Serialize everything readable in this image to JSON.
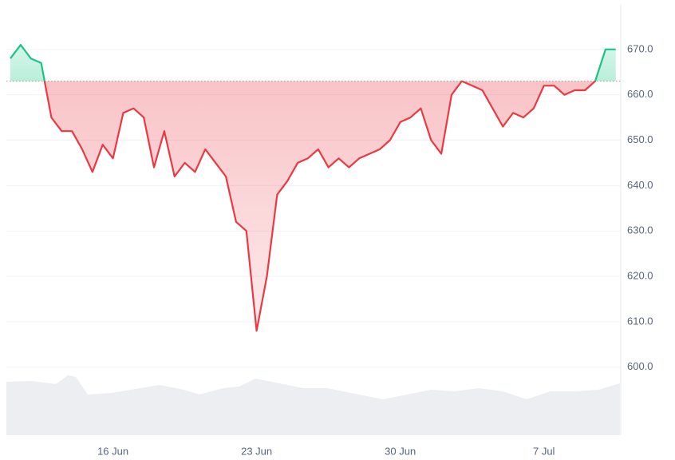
{
  "chart_data": {
    "type": "line",
    "categories": [
      null,
      null,
      null,
      null,
      null,
      null,
      null,
      null,
      null,
      null,
      "16 Jun",
      null,
      null,
      null,
      null,
      null,
      null,
      null,
      null,
      null,
      null,
      null,
      null,
      null,
      "23 Jun",
      null,
      null,
      null,
      null,
      null,
      null,
      null,
      null,
      null,
      null,
      null,
      null,
      null,
      "30 Jun",
      null,
      null,
      null,
      null,
      null,
      null,
      null,
      null,
      null,
      null,
      null,
      null,
      null,
      "7 Jul",
      null,
      null,
      null,
      null,
      null,
      null,
      null
    ],
    "values": [
      668,
      671,
      668,
      667,
      655,
      652,
      652,
      648,
      643,
      649,
      646,
      656,
      657,
      655,
      644,
      652,
      642,
      645,
      643,
      648,
      645,
      642,
      632,
      630,
      608,
      620,
      638,
      641,
      645,
      646,
      648,
      644,
      646,
      644,
      646,
      647,
      648,
      650,
      654,
      655,
      657,
      650,
      647,
      660,
      663,
      662,
      661,
      657,
      653,
      656,
      655,
      657,
      662,
      662,
      660,
      661,
      661,
      663,
      670,
      670
    ],
    "baseline": 663,
    "up_color": "#16c784",
    "down_color": "#ea3943",
    "ylim": [
      585,
      680
    ],
    "yticks": [
      {
        "value": 600,
        "label": "600.0"
      },
      {
        "value": 610,
        "label": "610.0"
      },
      {
        "value": 620,
        "label": "620.0"
      },
      {
        "value": 630,
        "label": "630.0"
      },
      {
        "value": 640,
        "label": "640.0"
      },
      {
        "value": 650,
        "label": "650.0"
      },
      {
        "value": 660,
        "label": "660.0"
      },
      {
        "value": 670,
        "label": "670.0"
      }
    ],
    "grid": true
  }
}
